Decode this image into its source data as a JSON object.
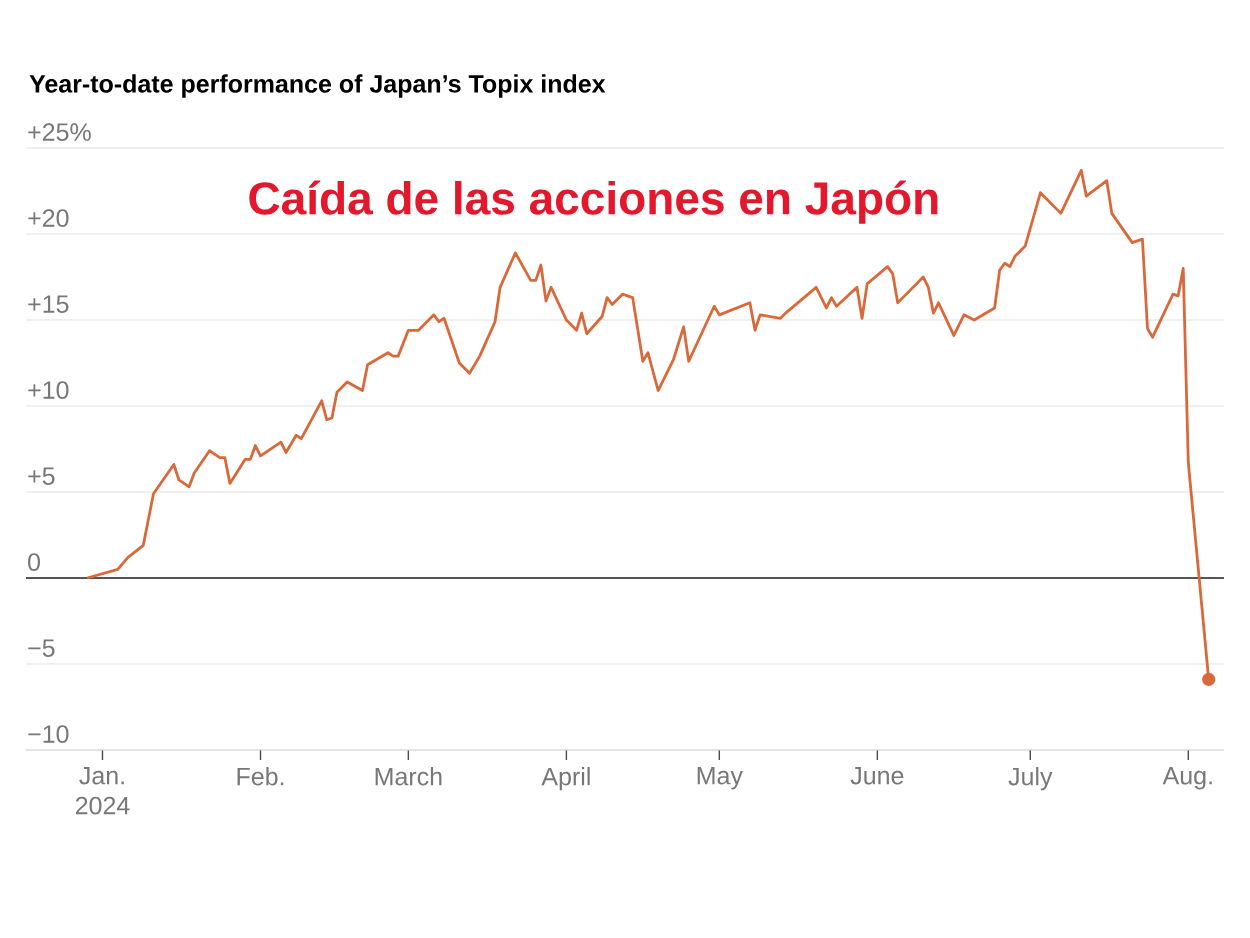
{
  "chart_data": {
    "type": "line",
    "title": "Year-to-date performance of Japan’s Topix index",
    "annotations": [
      "Caída de las acciones en Japón"
    ],
    "xlim": [
      "2023-12-17",
      "2024-08-08"
    ],
    "ylim": [
      -10,
      25
    ],
    "xticks": [
      {
        "value": "2024-01-01",
        "label": "Jan. 2024"
      },
      {
        "value": "2024-02-01",
        "label": "Feb."
      },
      {
        "value": "2024-03-01",
        "label": "March"
      },
      {
        "value": "2024-04-01",
        "label": "April"
      },
      {
        "value": "2024-05-01",
        "label": "May"
      },
      {
        "value": "2024-06-01",
        "label": "June"
      },
      {
        "value": "2024-07-01",
        "label": "July"
      },
      {
        "value": "2024-08-01",
        "label": "Aug."
      }
    ],
    "yticks": [
      {
        "value": 25,
        "label": "+25%"
      },
      {
        "value": 20,
        "label": "+20"
      },
      {
        "value": 15,
        "label": "+15"
      },
      {
        "value": 10,
        "label": "+10"
      },
      {
        "value": 5,
        "label": "+5"
      },
      0,
      {
        "value": -5,
        "label": "−5"
      },
      {
        "value": -10,
        "label": "−10"
      }
    ],
    "grid": "y",
    "ref_lines": [
      {
        "axis": "y",
        "value": 0,
        "color": "#222222"
      }
    ],
    "series": [
      {
        "color": "#d9693a",
        "x": [
          "2023-12-29",
          "2024-01-04",
          "2024-01-06",
          "2024-01-09",
          "2024-01-11",
          "2024-01-15",
          "2024-01-16",
          "2024-01-18",
          "2024-01-19",
          "2024-01-22",
          "2024-01-23",
          "2024-01-24",
          "2024-01-25",
          "2024-01-26",
          "2024-01-29",
          "2024-01-30",
          "2024-01-31",
          "2024-02-01",
          "2024-02-05",
          "2024-02-06",
          "2024-02-08",
          "2024-02-09",
          "2024-02-13",
          "2024-02-14",
          "2024-02-15",
          "2024-02-16",
          "2024-02-18",
          "2024-02-21",
          "2024-02-22",
          "2024-02-26",
          "2024-02-27",
          "2024-02-28",
          "2024-03-01",
          "2024-03-03",
          "2024-03-06",
          "2024-03-07",
          "2024-03-08",
          "2024-03-11",
          "2024-03-13",
          "2024-03-15",
          "2024-03-18",
          "2024-03-19",
          "2024-03-22",
          "2024-03-25",
          "2024-03-26",
          "2024-03-27",
          "2024-03-28",
          "2024-03-29",
          "2024-04-01",
          "2024-04-03",
          "2024-04-04",
          "2024-04-05",
          "2024-04-08",
          "2024-04-09",
          "2024-04-10",
          "2024-04-12",
          "2024-04-14",
          "2024-04-16",
          "2024-04-17",
          "2024-04-19",
          "2024-04-22",
          "2024-04-24",
          "2024-04-25",
          "2024-04-30",
          "2024-05-01",
          "2024-05-07",
          "2024-05-08",
          "2024-05-09",
          "2024-05-13",
          "2024-05-14",
          "2024-05-20",
          "2024-05-22",
          "2024-05-23",
          "2024-05-24",
          "2024-05-28",
          "2024-05-29",
          "2024-05-30",
          "2024-06-03",
          "2024-06-04",
          "2024-06-05",
          "2024-06-06",
          "2024-06-10",
          "2024-06-11",
          "2024-06-12",
          "2024-06-13",
          "2024-06-16",
          "2024-06-18",
          "2024-06-20",
          "2024-06-24",
          "2024-06-25",
          "2024-06-26",
          "2024-06-27",
          "2024-06-28",
          "2024-06-30",
          "2024-07-03",
          "2024-07-07",
          "2024-07-11",
          "2024-07-12",
          "2024-07-16",
          "2024-07-17",
          "2024-07-21",
          "2024-07-23",
          "2024-07-24",
          "2024-07-25",
          "2024-07-29",
          "2024-07-30",
          "2024-07-31",
          "2024-08-01",
          "2024-08-05"
        ],
        "values": [
          0,
          0.5,
          1.2,
          1.9,
          4.9,
          6.6,
          5.7,
          5.3,
          6.1,
          7.4,
          7.2,
          7.0,
          7.0,
          5.5,
          6.9,
          6.9,
          7.7,
          7.1,
          7.9,
          7.3,
          8.3,
          8.1,
          10.3,
          9.2,
          9.3,
          10.8,
          11.4,
          10.9,
          12.4,
          13.1,
          12.9,
          12.9,
          14.4,
          14.4,
          15.3,
          14.9,
          15.1,
          12.5,
          11.9,
          12.9,
          14.9,
          16.9,
          18.9,
          17.3,
          17.3,
          18.2,
          16.1,
          16.9,
          15.0,
          14.4,
          15.4,
          14.2,
          15.2,
          16.3,
          15.9,
          16.5,
          16.3,
          12.6,
          13.1,
          10.9,
          12.7,
          14.6,
          12.6,
          15.8,
          15.3,
          16.0,
          14.4,
          15.3,
          15.1,
          15.4,
          16.9,
          15.7,
          16.3,
          15.8,
          16.9,
          15.1,
          17.1,
          18.1,
          17.7,
          16.0,
          16.3,
          17.5,
          16.9,
          15.4,
          16.0,
          14.1,
          15.3,
          15.0,
          15.7,
          17.9,
          18.3,
          18.1,
          18.7,
          19.3,
          22.4,
          21.2,
          23.7,
          22.2,
          23.1,
          21.2,
          19.5,
          19.7,
          14.5,
          14.0,
          16.5,
          16.4,
          18.0,
          6.7,
          -5.9
        ]
      },
      {
        "type": "scatter",
        "marker": "circle",
        "color": "#d9693a",
        "x": [
          "2024-08-05"
        ],
        "values": [
          -5.9
        ]
      }
    ]
  }
}
